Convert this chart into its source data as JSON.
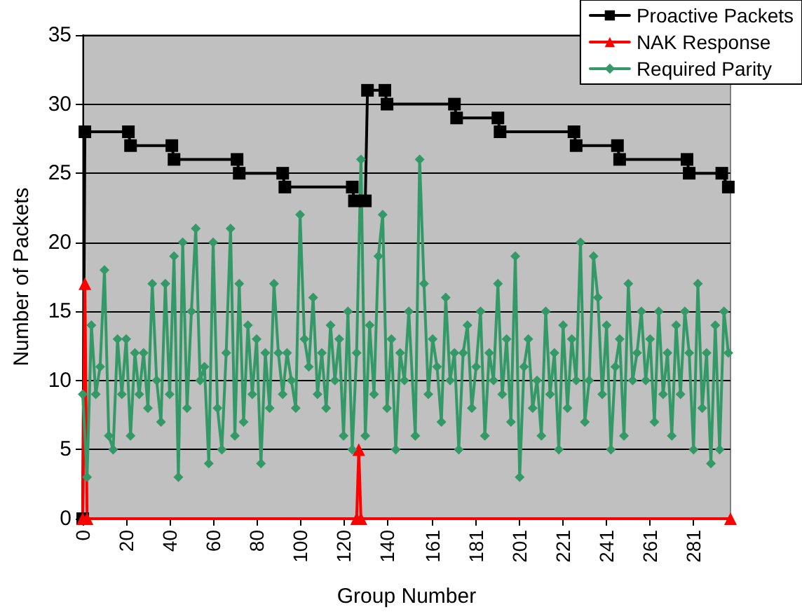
{
  "chart_data": {
    "type": "line",
    "xlabel": "Group Number",
    "ylabel": "Number of Packets",
    "xlim": [
      0,
      298
    ],
    "xticks": [
      0,
      20,
      40,
      60,
      80,
      100,
      120,
      140,
      161,
      181,
      201,
      221,
      241,
      261,
      281
    ],
    "ylim": [
      0,
      35
    ],
    "yticks": [
      0,
      5,
      10,
      15,
      20,
      25,
      30,
      35
    ],
    "grid": "y",
    "legend": "top right",
    "line_style": "solid",
    "series": [
      {
        "name": "Proactive Packets",
        "color": "#000000",
        "marker": "square",
        "x": [
          0,
          1,
          21,
          22,
          41,
          42,
          71,
          72,
          92,
          93,
          124,
          125,
          130,
          131,
          139,
          140,
          171,
          172,
          191,
          192,
          226,
          227,
          246,
          247,
          278,
          279,
          294,
          297
        ],
        "values": [
          0,
          28,
          28,
          27,
          27,
          26,
          26,
          25,
          25,
          24,
          24,
          23,
          23,
          31,
          31,
          30,
          30,
          29,
          29,
          28,
          28,
          27,
          27,
          26,
          26,
          25,
          25,
          24
        ]
      },
      {
        "name": "NAK Response",
        "color": "#ff0000",
        "marker": "triangle",
        "x": [
          0,
          1,
          2,
          126,
          127,
          128,
          298
        ],
        "values": [
          0,
          17,
          0,
          0,
          5,
          0,
          0
        ]
      },
      {
        "name": "Required Parity",
        "color": "#339966",
        "marker": "diamond",
        "x": [
          0,
          2,
          4,
          6,
          8,
          10,
          12,
          14,
          16,
          18,
          20,
          22,
          24,
          26,
          28,
          30,
          32,
          34,
          36,
          38,
          40,
          42,
          44,
          46,
          48,
          50,
          52,
          54,
          56,
          58,
          60,
          62,
          64,
          66,
          68,
          70,
          72,
          74,
          76,
          78,
          80,
          82,
          84,
          86,
          88,
          90,
          92,
          94,
          96,
          98,
          100,
          102,
          104,
          106,
          108,
          110,
          112,
          114,
          116,
          118,
          120,
          122,
          124,
          126,
          128,
          130,
          132,
          134,
          136,
          138,
          140,
          142,
          144,
          146,
          148,
          150,
          153,
          155,
          157,
          159,
          161,
          163,
          165,
          167,
          169,
          171,
          173,
          175,
          177,
          179,
          181,
          183,
          185,
          187,
          189,
          191,
          193,
          195,
          197,
          199,
          201,
          203,
          205,
          207,
          209,
          211,
          213,
          215,
          217,
          219,
          221,
          223,
          225,
          227,
          229,
          231,
          233,
          235,
          237,
          239,
          241,
          243,
          245,
          247,
          249,
          251,
          253,
          255,
          257,
          259,
          261,
          263,
          265,
          267,
          269,
          271,
          273,
          275,
          277,
          279,
          281,
          283,
          285,
          287,
          289,
          291,
          293,
          295,
          297
        ],
        "values": [
          9,
          3,
          14,
          9,
          11,
          18,
          6,
          5,
          13,
          9,
          13,
          6,
          12,
          9,
          12,
          8,
          17,
          10,
          7,
          17,
          9,
          19,
          3,
          20,
          8,
          15,
          21,
          10,
          11,
          4,
          20,
          8,
          5,
          12,
          21,
          6,
          17,
          7,
          14,
          9,
          13,
          4,
          12,
          8,
          17,
          12,
          9,
          12,
          10,
          8,
          22,
          13,
          11,
          16,
          9,
          12,
          8,
          14,
          10,
          13,
          6,
          15,
          5,
          12,
          26,
          6,
          14,
          9,
          19,
          22,
          8,
          13,
          5,
          12,
          10,
          15,
          6,
          26,
          17,
          9,
          13,
          11,
          7,
          16,
          10,
          12,
          5,
          12,
          14,
          8,
          11,
          15,
          6,
          12,
          10,
          17,
          9,
          13,
          7,
          19,
          3,
          11,
          13,
          8,
          10,
          6,
          15,
          9,
          12,
          5,
          14,
          8,
          13,
          10,
          20,
          7,
          10,
          19,
          16,
          9,
          14,
          5,
          11,
          13,
          6,
          17,
          10,
          12,
          15,
          10,
          13,
          7,
          15,
          9,
          12,
          6,
          14,
          9,
          15,
          12,
          5,
          17,
          8,
          12,
          4,
          14,
          5,
          15,
          12
        ]
      }
    ]
  }
}
